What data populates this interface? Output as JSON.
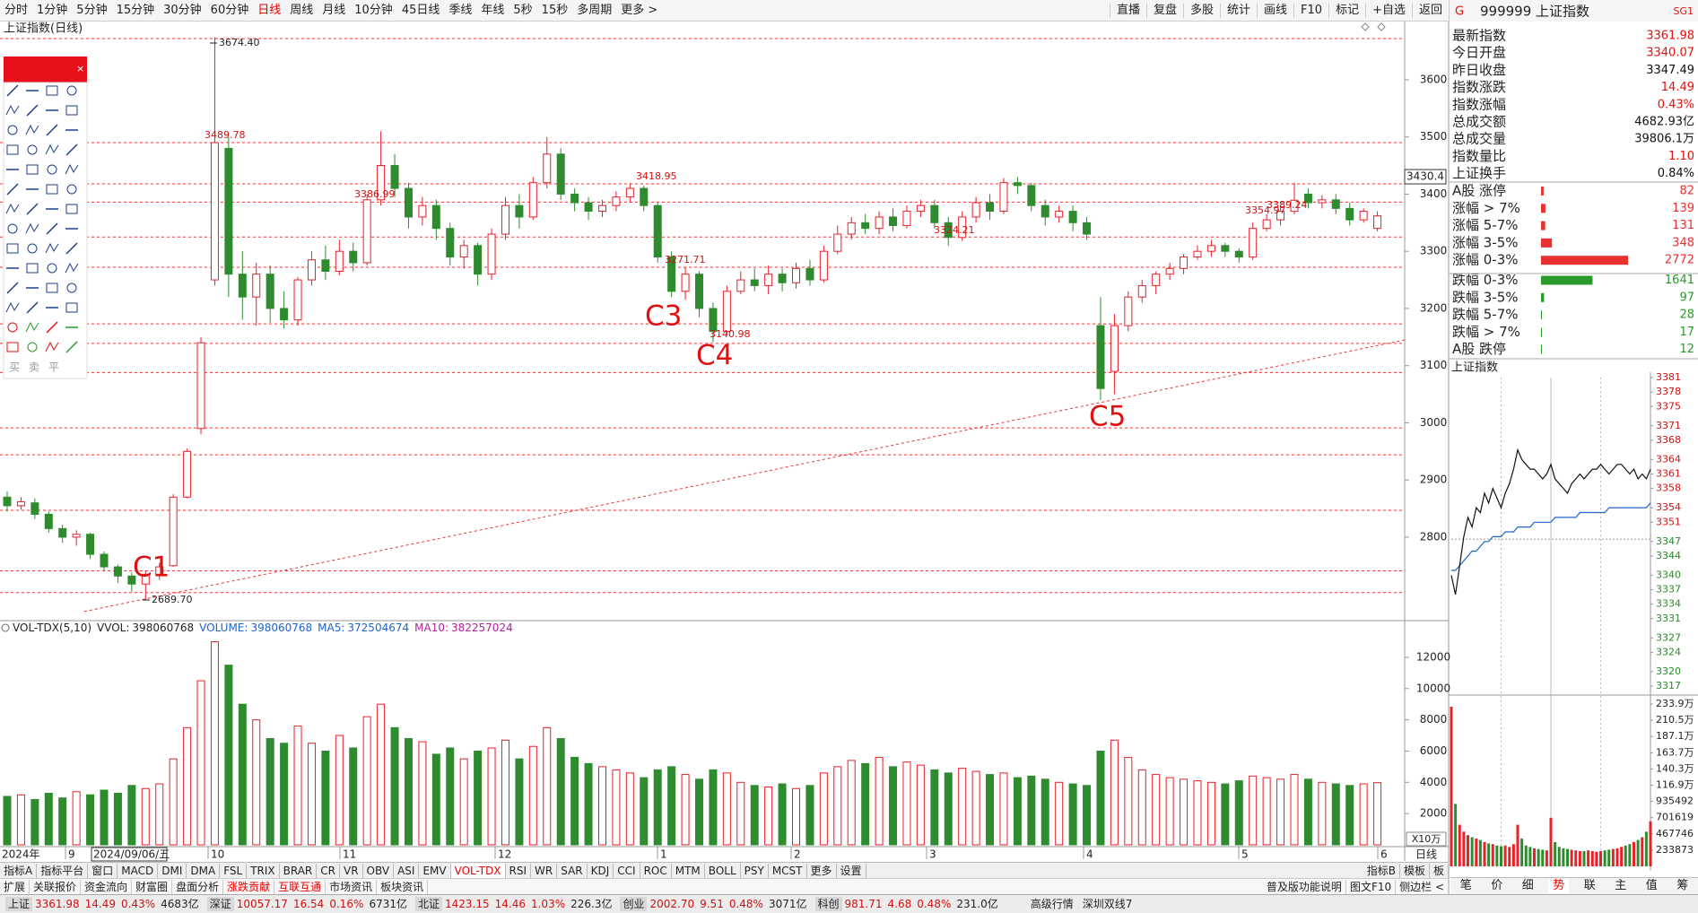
{
  "toolbar": {
    "periods": [
      "分时",
      "1分钟",
      "5分钟",
      "15分钟",
      "30分钟",
      "60分钟",
      "日线",
      "周线",
      "月线",
      "10分钟",
      "45日线",
      "季线",
      "年线",
      "5秒",
      "15秒",
      "多周期",
      "更多 >"
    ],
    "active": 6,
    "tools": [
      "直播",
      "复盘",
      "多股",
      "统计",
      "画线",
      "F10",
      "标记",
      "+自选",
      "返回"
    ]
  },
  "kline": {
    "title": "上证指数(日线)",
    "ylim": [
      2654,
      3705
    ],
    "yticks": [
      3600,
      3500,
      3400,
      3300,
      3200,
      3100,
      3000,
      2900,
      2800
    ],
    "hover_price": 3430.4,
    "candles": [
      [
        2870,
        2855,
        2880,
        2845
      ],
      [
        2855,
        2862,
        2870,
        2848
      ],
      [
        2860,
        2840,
        2868,
        2832
      ],
      [
        2840,
        2815,
        2845,
        2808
      ],
      [
        2815,
        2800,
        2822,
        2790
      ],
      [
        2800,
        2805,
        2812,
        2785
      ],
      [
        2805,
        2770,
        2808,
        2762
      ],
      [
        2770,
        2748,
        2775,
        2740
      ],
      [
        2748,
        2732,
        2752,
        2720
      ],
      [
        2732,
        2718,
        2738,
        2705
      ],
      [
        2718,
        2735,
        2742,
        2689.7
      ],
      [
        2735,
        2748,
        2755,
        2725
      ],
      [
        2750,
        2870,
        2875,
        2748
      ],
      [
        2870,
        2950,
        2955,
        2868
      ],
      [
        2990,
        3140,
        3150,
        2980
      ],
      [
        3250,
        3490,
        3674.4,
        3240
      ],
      [
        3480,
        3260,
        3500,
        3220
      ],
      [
        3260,
        3220,
        3300,
        3180
      ],
      [
        3220,
        3260,
        3280,
        3170
      ],
      [
        3260,
        3200,
        3275,
        3175
      ],
      [
        3200,
        3180,
        3230,
        3165
      ],
      [
        3180,
        3250,
        3255,
        3170
      ],
      [
        3250,
        3285,
        3300,
        3240
      ],
      [
        3285,
        3265,
        3310,
        3250
      ],
      [
        3265,
        3300,
        3320,
        3258
      ],
      [
        3300,
        3280,
        3315,
        3265
      ],
      [
        3280,
        3390,
        3400,
        3275
      ],
      [
        3390,
        3450,
        3510,
        3380
      ],
      [
        3450,
        3410,
        3470,
        3395
      ],
      [
        3410,
        3360,
        3420,
        3340
      ],
      [
        3360,
        3380,
        3395,
        3345
      ],
      [
        3380,
        3340,
        3390,
        3320
      ],
      [
        3340,
        3290,
        3350,
        3275
      ],
      [
        3290,
        3310,
        3320,
        3270
      ],
      [
        3310,
        3260,
        3315,
        3240
      ],
      [
        3260,
        3330,
        3340,
        3250
      ],
      [
        3330,
        3380,
        3395,
        3320
      ],
      [
        3380,
        3360,
        3400,
        3340
      ],
      [
        3360,
        3420,
        3430,
        3355
      ],
      [
        3420,
        3470,
        3500,
        3410
      ],
      [
        3470,
        3400,
        3480,
        3390
      ],
      [
        3400,
        3385,
        3410,
        3370
      ],
      [
        3385,
        3370,
        3395,
        3355
      ],
      [
        3370,
        3380,
        3390,
        3360
      ],
      [
        3380,
        3395,
        3405,
        3370
      ],
      [
        3395,
        3410,
        3418.95,
        3385
      ],
      [
        3410,
        3380,
        3415,
        3370
      ],
      [
        3380,
        3290,
        3385,
        3280
      ],
      [
        3290,
        3230,
        3300,
        3220
      ],
      [
        3230,
        3260,
        3271.71,
        3215
      ],
      [
        3260,
        3200,
        3265,
        3185
      ],
      [
        3200,
        3160,
        3210,
        3140.98
      ],
      [
        3160,
        3230,
        3240,
        3155
      ],
      [
        3230,
        3250,
        3265,
        3225
      ],
      [
        3250,
        3240,
        3270,
        3230
      ],
      [
        3240,
        3260,
        3275,
        3225
      ],
      [
        3260,
        3245,
        3270,
        3230
      ],
      [
        3245,
        3270,
        3280,
        3235
      ],
      [
        3270,
        3250,
        3285,
        3240
      ],
      [
        3250,
        3300,
        3310,
        3245
      ],
      [
        3300,
        3330,
        3345,
        3295
      ],
      [
        3330,
        3350,
        3360,
        3320
      ],
      [
        3350,
        3340,
        3365,
        3330
      ],
      [
        3340,
        3360,
        3370,
        3330
      ],
      [
        3360,
        3345,
        3375,
        3335
      ],
      [
        3345,
        3370,
        3380,
        3340
      ],
      [
        3370,
        3380,
        3390,
        3360
      ],
      [
        3380,
        3350,
        3390,
        3340
      ],
      [
        3350,
        3324.21,
        3360,
        3310
      ],
      [
        3324.21,
        3360,
        3370,
        3318
      ],
      [
        3360,
        3385,
        3395,
        3350
      ],
      [
        3385,
        3370,
        3400,
        3355
      ],
      [
        3370,
        3420,
        3428,
        3365
      ],
      [
        3420,
        3415,
        3430,
        3400
      ],
      [
        3415,
        3380,
        3420,
        3370
      ],
      [
        3380,
        3360,
        3390,
        3345
      ],
      [
        3360,
        3370,
        3380,
        3350
      ],
      [
        3370,
        3350,
        3380,
        3335
      ],
      [
        3350,
        3330,
        3360,
        3320
      ],
      [
        3170,
        3060,
        3220,
        3040
      ],
      [
        3090,
        3170,
        3190,
        3050
      ],
      [
        3170,
        3220,
        3230,
        3160
      ],
      [
        3220,
        3240,
        3250,
        3210
      ],
      [
        3240,
        3260,
        3265,
        3225
      ],
      [
        3260,
        3270,
        3280,
        3250
      ],
      [
        3270,
        3290,
        3295,
        3260
      ],
      [
        3290,
        3300,
        3310,
        3285
      ],
      [
        3300,
        3310,
        3320,
        3290
      ],
      [
        3310,
        3300,
        3315,
        3290
      ],
      [
        3300,
        3290,
        3305,
        3280
      ],
      [
        3290,
        3340,
        3350,
        3285
      ],
      [
        3340,
        3354.97,
        3365,
        3335
      ],
      [
        3355,
        3370,
        3380,
        3345
      ],
      [
        3370,
        3389.24,
        3420,
        3365
      ],
      [
        3400,
        3385,
        3410,
        3375
      ],
      [
        3385,
        3390,
        3398,
        3375
      ],
      [
        3390,
        3375,
        3400,
        3365
      ],
      [
        3375,
        3355,
        3385,
        3345
      ],
      [
        3355,
        3370,
        3375,
        3350
      ],
      [
        3340.07,
        3361.98,
        3370,
        3335
      ]
    ],
    "support_lines": [
      3672,
      3490,
      3418,
      3386,
      3325,
      3272,
      3173,
      3139,
      3088,
      2991,
      2944,
      2847,
      2741,
      2703
    ],
    "trendline": [
      2670,
      3145
    ],
    "price_labels": [
      "3674.40",
      "3489.78",
      "3386.99",
      "3418.95",
      "3271.71",
      "3140.98",
      "3324.21",
      "3354.97",
      "3389.24",
      "2689.70"
    ],
    "wave_labels": [
      "C1",
      "C3",
      "C4",
      "C5"
    ]
  },
  "toolbox": {
    "trade_labels": [
      "买",
      "卖",
      "平"
    ]
  },
  "volume": {
    "indicator": "VOL-TDX(5,10)",
    "fields": [
      {
        "name": "VVOL:",
        "value": 398060768,
        "color": "#222222"
      },
      {
        "name": "VOLUME:",
        "value": 398060768,
        "color": "#1e64c8"
      },
      {
        "name": "MA5:",
        "value": 372504674,
        "color": "#1e64c8"
      },
      {
        "name": "MA10:",
        "value": 382257024,
        "color": "#b0209a"
      }
    ],
    "unit": "X10万",
    "ylim": [
      0,
      13200
    ],
    "yticks": [
      2000,
      4000,
      6000,
      8000,
      10000,
      12000
    ],
    "values": [
      3100,
      3200,
      2900,
      3300,
      3000,
      3400,
      3200,
      3500,
      3300,
      3800,
      3600,
      3900,
      5500,
      7500,
      10500,
      13000,
      11500,
      9000,
      8000,
      6800,
      6500,
      7600,
      6500,
      6000,
      7000,
      6200,
      8200,
      9000,
      7500,
      6800,
      6600,
      5800,
      6200,
      5500,
      6000,
      6200,
      6700,
      5500,
      6300,
      7500,
      6800,
      5600,
      5200,
      5000,
      4800,
      4600,
      4300,
      4800,
      5000,
      4500,
      4200,
      4800,
      4600,
      4000,
      3800,
      3700,
      3900,
      3600,
      3800,
      4600,
      5000,
      5400,
      5200,
      5600,
      5000,
      5300,
      5100,
      4800,
      4600,
      4900,
      4700,
      4500,
      4600,
      4300,
      4400,
      4200,
      4000,
      3900,
      3800,
      6000,
      6700,
      5600,
      4800,
      4500,
      4300,
      4200,
      4100,
      4000,
      3900,
      4100,
      4400,
      4300,
      4200,
      4500,
      4200,
      4000,
      3900,
      3800,
      3900,
      3980
    ]
  },
  "dates": {
    "labels": [
      "2024年",
      "9",
      "2024/09/06/五",
      "10",
      "11",
      "12",
      "1",
      "2",
      "3",
      "4",
      "5",
      "6"
    ],
    "period": "日线"
  },
  "tabs": {
    "indicators": [
      "指标A",
      "指标平台",
      "窗口",
      "MACD",
      "DMI",
      "DMA",
      "FSL",
      "TRIX",
      "BRAR",
      "CR",
      "VR",
      "OBV",
      "ASI",
      "EMV",
      "VOL-TDX",
      "RSI",
      "WR",
      "SAR",
      "KDJ",
      "CCI",
      "ROC",
      "MTM",
      "BOLL",
      "PSY",
      "MCST",
      "更多",
      "设置"
    ],
    "active": 14,
    "right": [
      "指标B",
      "模板",
      "板"
    ]
  },
  "subtabs": {
    "items": [
      "扩展",
      "关联报价",
      "资金流向",
      "财富圈",
      "盘面分析",
      "涨跌贡献",
      "互联互通",
      "市场资讯",
      "板块资讯"
    ],
    "highlight": [
      5,
      6
    ],
    "right": [
      "普及版功能说明",
      "图文F10",
      "侧边栏 <"
    ]
  },
  "status": {
    "markets": [
      {
        "name": "上证",
        "values": [
          "3361.98",
          "14.49",
          "0.43%",
          "4683亿"
        ]
      },
      {
        "name": "深证",
        "values": [
          "10057.17",
          "16.54",
          "0.16%",
          "6731亿"
        ]
      },
      {
        "name": "北证",
        "values": [
          "1423.15",
          "14.46",
          "1.03%",
          "226.3亿"
        ]
      },
      {
        "name": "创业",
        "values": [
          "2002.70",
          "9.51",
          "0.48%",
          "3071亿"
        ]
      },
      {
        "name": "科创",
        "values": [
          "981.71",
          "4.68",
          "0.48%",
          "231.0亿"
        ]
      }
    ],
    "right": [
      "高级行情",
      "深圳双线7"
    ]
  },
  "quote": {
    "badge": "G",
    "code": "999999",
    "name": "上证指数",
    "tag": "SG1",
    "rows": [
      {
        "label": "最新指数",
        "value": "3361.98",
        "color": "#e01010"
      },
      {
        "label": "今日开盘",
        "value": "3340.07",
        "color": "#e01010"
      },
      {
        "label": "昨日收盘",
        "value": "3347.49",
        "color": "#111111"
      },
      {
        "label": "指数涨跌",
        "value": "14.49",
        "color": "#e01010"
      },
      {
        "label": "指数涨幅",
        "value": "0.43%",
        "color": "#e01010"
      },
      {
        "label": "总成交额",
        "value": "4682.93亿",
        "color": "#111111"
      },
      {
        "label": "总成交量",
        "value": "39806.1万",
        "color": "#111111"
      },
      {
        "label": "指数量比",
        "value": "1.10",
        "color": "#e01010"
      },
      {
        "label": "上证换手",
        "value": "0.84%",
        "color": "#111111"
      }
    ]
  },
  "breadth": {
    "rows": [
      {
        "label": "A股 涨停",
        "value": 82,
        "color": "#e83030"
      },
      {
        "label": "涨幅 > 7%",
        "value": 139,
        "color": "#e83030"
      },
      {
        "label": "涨幅 5-7%",
        "value": 131,
        "color": "#e83030"
      },
      {
        "label": "涨幅 3-5%",
        "value": 348,
        "color": "#e83030"
      },
      {
        "label": "涨幅 0-3%",
        "value": 2772,
        "color": "#e83030"
      },
      {
        "label": "跌幅 0-3%",
        "value": 1641,
        "color": "#2a9a2a"
      },
      {
        "label": "跌幅 3-5%",
        "value": 97,
        "color": "#2a9a2a"
      },
      {
        "label": "跌幅 5-7%",
        "value": 28,
        "color": "#2a9a2a"
      },
      {
        "label": "跌幅 > 7%",
        "value": 17,
        "color": "#2a9a2a"
      },
      {
        "label": "A股 跌停",
        "value": 12,
        "color": "#2a9a2a"
      }
    ]
  },
  "intraday": {
    "title": "上证指数",
    "ylim": [
      3317,
      3381
    ],
    "yticks": [
      3381,
      3378,
      3375,
      3371,
      3368,
      3364,
      3361,
      3358,
      3354,
      3351,
      3347,
      3344,
      3340,
      3337,
      3334,
      3331,
      3327,
      3324,
      3320,
      3317
    ],
    "prev_close": 3347.49,
    "price": [
      3340,
      3336,
      3342,
      3348,
      3352,
      3350,
      3354,
      3353,
      3357,
      3355,
      3358,
      3356,
      3354,
      3357,
      3359,
      3362,
      3366,
      3364,
      3363,
      3362,
      3362,
      3361,
      3360,
      3361,
      3363,
      3360,
      3359,
      3358,
      3357,
      3359,
      3360,
      3361,
      3360,
      3361,
      3362,
      3362,
      3363,
      3362,
      3361,
      3362,
      3363,
      3363,
      3362,
      3361,
      3362,
      3360,
      3361,
      3360,
      3361.98
    ],
    "avg": [
      3341,
      3341,
      3342,
      3343,
      3344,
      3345,
      3345,
      3346,
      3347,
      3347,
      3348,
      3348,
      3348,
      3349,
      3349,
      3349,
      3350,
      3350,
      3350,
      3350,
      3351,
      3351,
      3351,
      3351,
      3351,
      3352,
      3352,
      3352,
      3352,
      3352,
      3352,
      3353,
      3353,
      3353,
      3353,
      3353,
      3353,
      3353,
      3354,
      3354,
      3354,
      3354,
      3354,
      3354,
      3354,
      3354,
      3354,
      3354,
      3355
    ],
    "vlim": [
      0,
      2339000
    ],
    "vticks": [
      {
        "value": 2339000,
        "label": "233.9万"
      },
      {
        "value": 2105000,
        "label": "210.5万"
      },
      {
        "value": 1871000,
        "label": "187.1万"
      },
      {
        "value": 1637000,
        "label": "163.7万"
      },
      {
        "value": 1403000,
        "label": "140.3万"
      },
      {
        "value": 1169000,
        "label": "116.9万"
      },
      935492,
      701619,
      467746,
      233873
    ],
    "volume": [
      2300000,
      900000,
      600000,
      500000,
      450000,
      420000,
      400000,
      380000,
      350000,
      330000,
      320000,
      300000,
      290000,
      300000,
      280000,
      320000,
      600000,
      400000,
      300000,
      280000,
      260000,
      250000,
      240000,
      230000,
      700000,
      350000,
      280000,
      260000,
      250000,
      240000,
      230000,
      220000,
      220000,
      230000,
      220000,
      210000,
      220000,
      230000,
      240000,
      250000,
      260000,
      280000,
      300000,
      320000,
      350000,
      380000,
      420000,
      500000,
      650000
    ],
    "tabs": [
      "笔",
      "价",
      "细",
      "势",
      "联",
      "主",
      "值",
      "筹"
    ],
    "active_tab": 3
  }
}
